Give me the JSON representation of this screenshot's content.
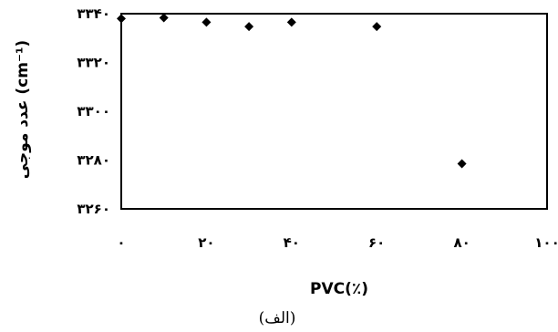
{
  "chart_data": {
    "type": "scatter",
    "x": [
      0,
      10,
      20,
      30,
      40,
      60,
      80
    ],
    "y": [
      3338,
      3338.3,
      3336.5,
      3334.7,
      3336.5,
      3334.7,
      3278.5
    ],
    "xlim": [
      0,
      100
    ],
    "ylim": [
      3260,
      3340
    ],
    "xticks": [
      0,
      20,
      40,
      60,
      80,
      100
    ],
    "yticks": [
      3260,
      3280,
      3300,
      3320,
      3340
    ],
    "xtick_labels": [
      "۰",
      "۲۰",
      "۴۰",
      "۶۰",
      "۸۰",
      "۱۰۰"
    ],
    "ytick_labels": [
      "۳۲۶۰",
      "۳۲۸۰",
      "۳۳۰۰",
      "۳۳۲۰",
      "۳۳۴۰"
    ],
    "xlabel": "PVC(٪)",
    "ylabel": "عدد موجی (cm⁻¹)",
    "caption": "(الف)",
    "marker": "diamond",
    "marker_color": "#000000",
    "grid": false,
    "legend": "none"
  }
}
